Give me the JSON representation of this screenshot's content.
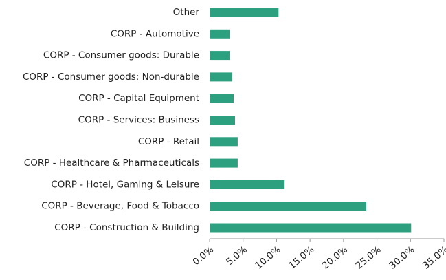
{
  "chart_data": {
    "type": "barh",
    "categories": [
      "Other",
      "CORP - Automotive",
      "CORP - Consumer goods: Durable",
      "CORP - Consumer goods: Non-durable",
      "CORP - Capital Equipment",
      "CORP - Services: Business",
      "CORP - Retail",
      "CORP - Healthcare & Pharmaceuticals",
      "CORP - Hotel, Gaming & Leisure",
      "CORP - Beverage, Food & Tobacco",
      "CORP - Construction & Building"
    ],
    "values": [
      10.3,
      3.0,
      3.0,
      3.4,
      3.6,
      3.8,
      4.2,
      4.2,
      11.1,
      23.4,
      30.1
    ],
    "color": "#2ca07f",
    "xlim": [
      0,
      35
    ],
    "xticks": [
      {
        "value": 0,
        "label": "0.0%"
      },
      {
        "value": 5,
        "label": "5.0%"
      },
      {
        "value": 10,
        "label": "10.0%"
      },
      {
        "value": 15,
        "label": "15.0%"
      },
      {
        "value": 20,
        "label": "20.0%"
      },
      {
        "value": 25,
        "label": "25.0%"
      },
      {
        "value": 30,
        "label": "30.0%"
      },
      {
        "value": 35,
        "label": "35.0%"
      }
    ]
  }
}
